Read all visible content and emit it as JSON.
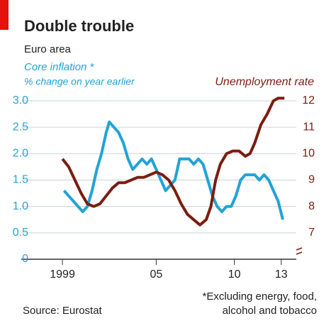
{
  "chart_data": {
    "type": "line",
    "title": "Double trouble",
    "subtitle": "Euro area",
    "ylabel": "% change on year earlier",
    "footnote": [
      "*Excluding energy, food,",
      "alcohol and tobacco"
    ],
    "source": "Source: Eurostat",
    "xlim": [
      1998,
      2013.6
    ],
    "xticks": [
      {
        "value": 1999,
        "label": "1999"
      },
      {
        "value": 2005,
        "label": "05"
      },
      {
        "value": 2010,
        "label": "10"
      },
      {
        "value": 2013,
        "label": "13"
      }
    ],
    "ylim": [
      0,
      3
    ],
    "yticks": [
      0,
      0.5,
      {
        "value": 1,
        "label": "1.0"
      },
      1.5,
      {
        "value": 2,
        "label": "2.0"
      },
      2.5,
      {
        "value": 3,
        "label": "3.0"
      }
    ],
    "y2lim": [
      6,
      12
    ],
    "y2ticks": [
      7,
      8,
      9,
      10,
      11,
      12
    ],
    "grid": true,
    "series": [
      {
        "name": "Core inflation *",
        "color": "#22a3d6",
        "x": [
          1999.1,
          1999.4,
          1999.7,
          2000.0,
          2000.3,
          2000.6,
          2000.9,
          2001.2,
          2001.5,
          2001.8,
          2002.0,
          2002.3,
          2002.6,
          2002.9,
          2003.2,
          2003.5,
          2003.8,
          2004.1,
          2004.4,
          2004.7,
          2005.0,
          2005.3,
          2005.6,
          2005.9,
          2006.2,
          2006.5,
          2006.8,
          2007.1,
          2007.4,
          2007.7,
          2008.0,
          2008.3,
          2008.6,
          2008.9,
          2009.2,
          2009.5,
          2009.8,
          2010.1,
          2010.4,
          2010.7,
          2011.0,
          2011.3,
          2011.6,
          2011.9,
          2012.2,
          2012.5,
          2012.8,
          2013.1
        ],
        "values": [
          1.3,
          1.2,
          1.1,
          1.0,
          0.9,
          1.0,
          1.3,
          1.7,
          2.0,
          2.4,
          2.6,
          2.5,
          2.4,
          2.2,
          1.9,
          1.7,
          1.8,
          1.9,
          1.8,
          1.9,
          1.7,
          1.5,
          1.3,
          1.4,
          1.5,
          1.9,
          1.9,
          1.9,
          1.8,
          1.9,
          1.8,
          1.5,
          1.2,
          1.0,
          0.9,
          1.0,
          1.0,
          1.2,
          1.5,
          1.6,
          1.6,
          1.6,
          1.5,
          1.6,
          1.5,
          1.3,
          1.1,
          0.75
        ]
      },
      {
        "name": "Unemployment rate",
        "color": "#7a1d10",
        "axis": "y2",
        "x": [
          1999.0,
          1999.4,
          1999.8,
          2000.2,
          2000.6,
          2001.0,
          2001.4,
          2001.8,
          2002.2,
          2002.6,
          2003.0,
          2003.4,
          2003.8,
          2004.2,
          2004.6,
          2005.0,
          2005.4,
          2005.8,
          2006.2,
          2006.6,
          2007.0,
          2007.4,
          2007.8,
          2008.2,
          2008.5,
          2008.8,
          2009.1,
          2009.5,
          2009.9,
          2010.3,
          2010.7,
          2011.0,
          2011.3,
          2011.7,
          2012.1,
          2012.5,
          2012.8,
          2013.2
        ],
        "values": [
          9.8,
          9.5,
          9.0,
          8.5,
          8.1,
          8.0,
          8.1,
          8.4,
          8.7,
          8.9,
          8.9,
          9.0,
          9.1,
          9.1,
          9.2,
          9.3,
          9.2,
          9.0,
          8.6,
          8.1,
          7.7,
          7.5,
          7.3,
          7.5,
          8.0,
          9.0,
          9.6,
          10.0,
          10.1,
          10.1,
          9.9,
          10.0,
          10.4,
          11.1,
          11.5,
          12.0,
          12.1,
          12.1
        ]
      }
    ]
  }
}
